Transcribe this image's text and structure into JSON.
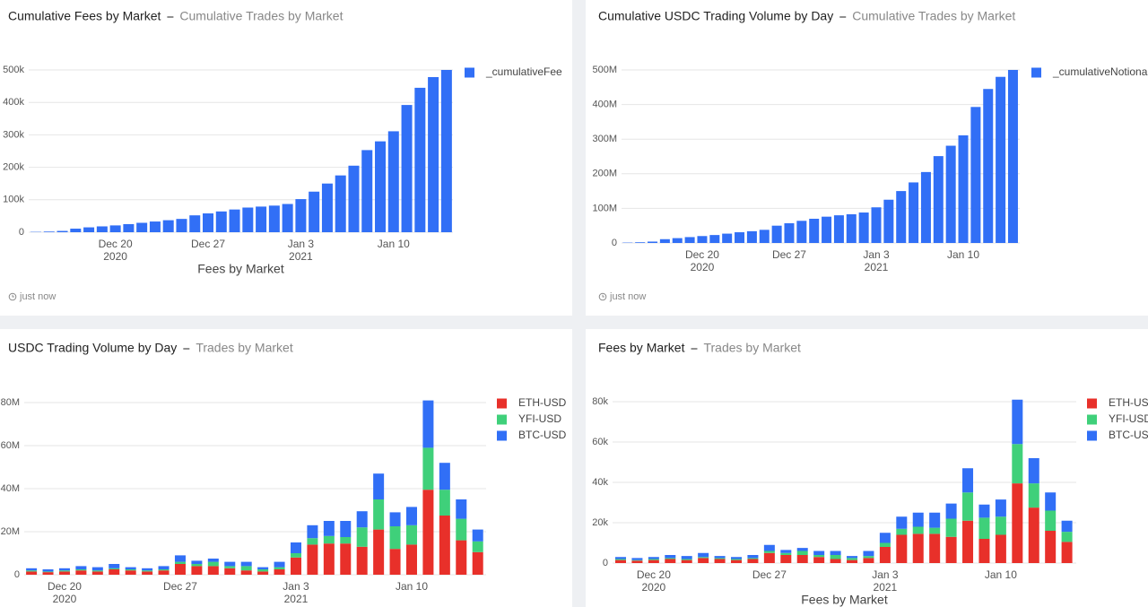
{
  "chart_data": [
    {
      "type": "bar",
      "title": "Cumulative Fees by Market",
      "subtitle": "Cumulative Trades by Market",
      "x_label": "Fees by Market",
      "timestamp": "just now",
      "categories": [
        null,
        null,
        null,
        null,
        null,
        null,
        "Dec 20\n2020",
        null,
        null,
        null,
        null,
        null,
        null,
        "Dec 27",
        null,
        null,
        null,
        null,
        null,
        null,
        "Jan 3\n2021",
        null,
        null,
        null,
        null,
        null,
        null,
        "Jan 10",
        null,
        null,
        null,
        null
      ],
      "series": [
        {
          "name": "_cumulativeFee",
          "color": "#316ff6",
          "values": [
            1000,
            2000,
            4000,
            11000,
            15000,
            18000,
            21000,
            25000,
            29000,
            33000,
            37000,
            41000,
            52000,
            58000,
            64000,
            70000,
            76000,
            79000,
            82000,
            87000,
            102000,
            125000,
            150000,
            175000,
            205000,
            253000,
            280000,
            311000,
            392000,
            445000,
            478000,
            500000
          ]
        }
      ],
      "ylim": [
        0,
        500000
      ],
      "yticks": [
        0,
        {
          "value": 100000,
          "label": "100k"
        },
        {
          "value": 200000,
          "label": "200k"
        },
        {
          "value": 300000,
          "label": "300k"
        },
        {
          "value": 400000,
          "label": "400k"
        },
        {
          "value": 500000,
          "label": "500k"
        }
      ],
      "grid": true,
      "legend": "right"
    },
    {
      "type": "bar",
      "title": "Cumulative USDC Trading Volume by Day",
      "subtitle": "Cumulative Trades by Market",
      "timestamp": "just now",
      "categories": [
        null,
        null,
        null,
        null,
        null,
        null,
        "Dec 20\n2020",
        null,
        null,
        null,
        null,
        null,
        null,
        "Dec 27",
        null,
        null,
        null,
        null,
        null,
        null,
        "Jan 3\n2021",
        null,
        null,
        null,
        null,
        null,
        null,
        "Jan 10",
        null,
        null,
        null,
        null
      ],
      "series": [
        {
          "name": "_cumulativeNotional",
          "color": "#316ff6",
          "values": [
            1000000,
            2000000,
            4000000,
            11000000,
            14000000,
            17000000,
            20000000,
            23000000,
            27000000,
            31000000,
            34000000,
            38000000,
            50000000,
            57000000,
            64000000,
            70000000,
            76000000,
            80000000,
            83000000,
            88000000,
            103000000,
            125000000,
            150000000,
            175000000,
            205000000,
            251000000,
            281000000,
            311000000,
            393000000,
            445000000,
            480000000,
            500000000
          ]
        }
      ],
      "ylim": [
        0,
        500000000
      ],
      "yticks": [
        0,
        {
          "value": 100000000,
          "label": "100M"
        },
        {
          "value": 200000000,
          "label": "200M"
        },
        {
          "value": 300000000,
          "label": "300M"
        },
        {
          "value": 400000000,
          "label": "400M"
        },
        {
          "value": 500000000,
          "label": "500M"
        }
      ],
      "grid": true,
      "legend": "right"
    },
    {
      "type": "stacked-bar",
      "title": "USDC Trading Volume by Day",
      "subtitle": "Trades by Market",
      "categories": [
        null,
        null,
        "Dec 20\n2020",
        null,
        null,
        null,
        null,
        null,
        null,
        "Dec 27",
        null,
        null,
        null,
        null,
        null,
        null,
        "Jan 3\n2021",
        null,
        null,
        null,
        null,
        null,
        null,
        "Jan 10",
        null,
        null,
        null,
        null
      ],
      "series": [
        {
          "name": "ETH-USD",
          "color": "#e8302a",
          "values": [
            1500000,
            1200000,
            1500000,
            2000000,
            1500000,
            2500000,
            2000000,
            1500000,
            2000000,
            5000000,
            4000000,
            4000000,
            3000000,
            2000000,
            1500000,
            2500000,
            8000000,
            14000000,
            14500000,
            14500000,
            13000000,
            21000000,
            12000000,
            14000000,
            39500000,
            27500000,
            16000000,
            10500000
          ]
        },
        {
          "name": "YFI-USD",
          "color": "#3fd07a",
          "values": [
            500000,
            300000,
            500000,
            500000,
            500000,
            500000,
            500000,
            500000,
            500000,
            1000000,
            1000000,
            2000000,
            1000000,
            2000000,
            1000000,
            1000000,
            2000000,
            3000000,
            3500000,
            3000000,
            9000000,
            14000000,
            10500000,
            9000000,
            19500000,
            12000000,
            10000000,
            5000000
          ]
        },
        {
          "name": "BTC-USD",
          "color": "#316ff6",
          "values": [
            1000000,
            1000000,
            1000000,
            1500000,
            1500000,
            2000000,
            1000000,
            1000000,
            1500000,
            3000000,
            1500000,
            1500000,
            2000000,
            2000000,
            1000000,
            2500000,
            5000000,
            6000000,
            7000000,
            7500000,
            7500000,
            12000000,
            6500000,
            8500000,
            22000000,
            12500000,
            9000000,
            5500000
          ]
        }
      ],
      "ylim": [
        0,
        80000000
      ],
      "yticks": [
        0,
        {
          "value": 20000000,
          "label": "20M"
        },
        {
          "value": 40000000,
          "label": "40M"
        },
        {
          "value": 60000000,
          "label": "60M"
        },
        {
          "value": 80000000,
          "label": "80M"
        }
      ],
      "grid": true,
      "legend": "right"
    },
    {
      "type": "stacked-bar",
      "title": "Fees by Market",
      "subtitle": "Trades by Market",
      "x_label": "Fees by Market",
      "categories": [
        null,
        null,
        "Dec 20\n2020",
        null,
        null,
        null,
        null,
        null,
        null,
        "Dec 27",
        null,
        null,
        null,
        null,
        null,
        null,
        "Jan 3\n2021",
        null,
        null,
        null,
        null,
        null,
        null,
        "Jan 10",
        null,
        null,
        null,
        null
      ],
      "series": [
        {
          "name": "ETH-USD",
          "color": "#e8302a",
          "values": [
            1500,
            1200,
            1500,
            2000,
            1500,
            2500,
            2000,
            1500,
            2000,
            5000,
            4000,
            4000,
            3000,
            2000,
            1500,
            2500,
            8000,
            14000,
            14500,
            14500,
            13000,
            21000,
            12000,
            14000,
            39500,
            27500,
            16000,
            10500
          ]
        },
        {
          "name": "YFI-USD",
          "color": "#3fd07a",
          "values": [
            500,
            300,
            500,
            500,
            500,
            500,
            500,
            500,
            500,
            1000,
            1000,
            2000,
            1000,
            2000,
            1000,
            1000,
            2000,
            3000,
            3500,
            3000,
            9000,
            14000,
            10500,
            9000,
            19500,
            12000,
            10000,
            5000
          ]
        },
        {
          "name": "BTC-USD",
          "color": "#316ff6",
          "values": [
            1000,
            1000,
            1000,
            1500,
            1500,
            2000,
            1000,
            1000,
            1500,
            3000,
            1500,
            1500,
            2000,
            2000,
            1000,
            2500,
            5000,
            6000,
            7000,
            7500,
            7500,
            12000,
            6500,
            8500,
            22000,
            12500,
            9000,
            5500
          ]
        }
      ],
      "ylim": [
        0,
        80000
      ],
      "yticks": [
        0,
        {
          "value": 20000,
          "label": "20k"
        },
        {
          "value": 40000,
          "label": "40k"
        },
        {
          "value": 60000,
          "label": "60k"
        },
        {
          "value": 80000,
          "label": "80k"
        }
      ],
      "grid": true,
      "legend": "right"
    }
  ]
}
